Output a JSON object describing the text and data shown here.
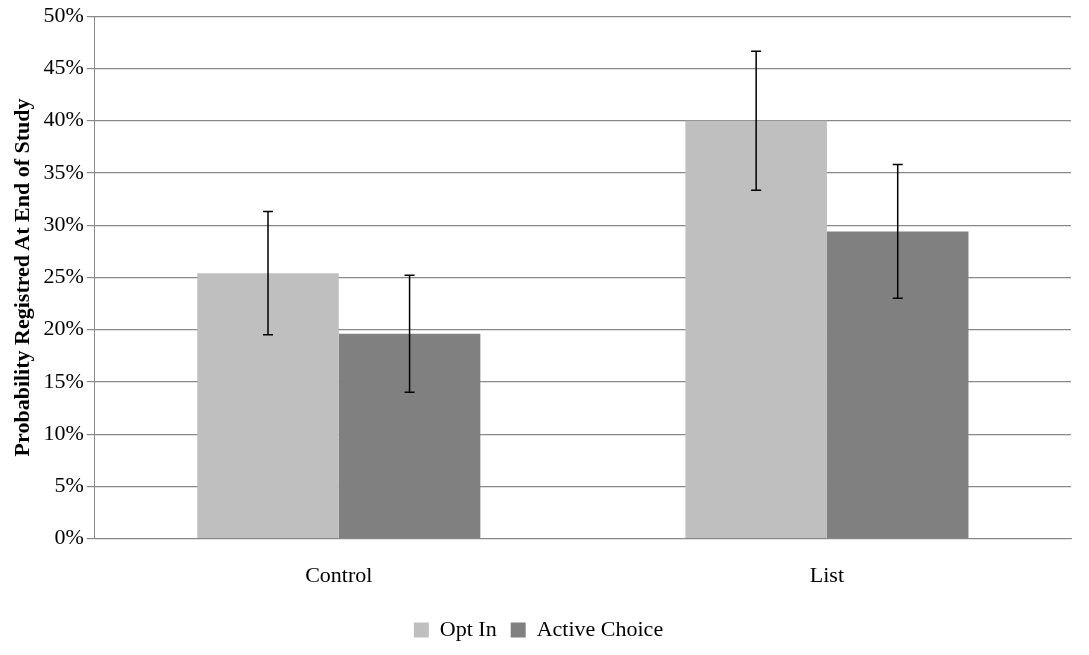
{
  "chart_data": {
    "type": "bar",
    "ylabel": "Probability Registred At End of Study",
    "categories": [
      "Control",
      "List"
    ],
    "series": [
      {
        "name": "Opt In",
        "color": "#bfbfbf",
        "values": [
          25.4,
          40.0
        ],
        "errors": [
          5.9,
          6.65
        ]
      },
      {
        "name": "Active Choice",
        "color": "#808080",
        "values": [
          19.6,
          29.4
        ],
        "errors": [
          5.6,
          6.4
        ]
      }
    ],
    "ylim": [
      0,
      50
    ],
    "yticks": [
      {
        "value": 0,
        "label": "0%"
      },
      {
        "value": 5,
        "label": "5%"
      },
      {
        "value": 10,
        "label": "10%"
      },
      {
        "value": 15,
        "label": "15%"
      },
      {
        "value": 20,
        "label": "20%"
      },
      {
        "value": 25,
        "label": "25%"
      },
      {
        "value": 30,
        "label": "30%"
      },
      {
        "value": 35,
        "label": "35%"
      },
      {
        "value": 40,
        "label": "40%"
      },
      {
        "value": 45,
        "label": "45%"
      },
      {
        "value": 50,
        "label": "50%"
      }
    ],
    "grid": "y",
    "legend": "bottom"
  }
}
